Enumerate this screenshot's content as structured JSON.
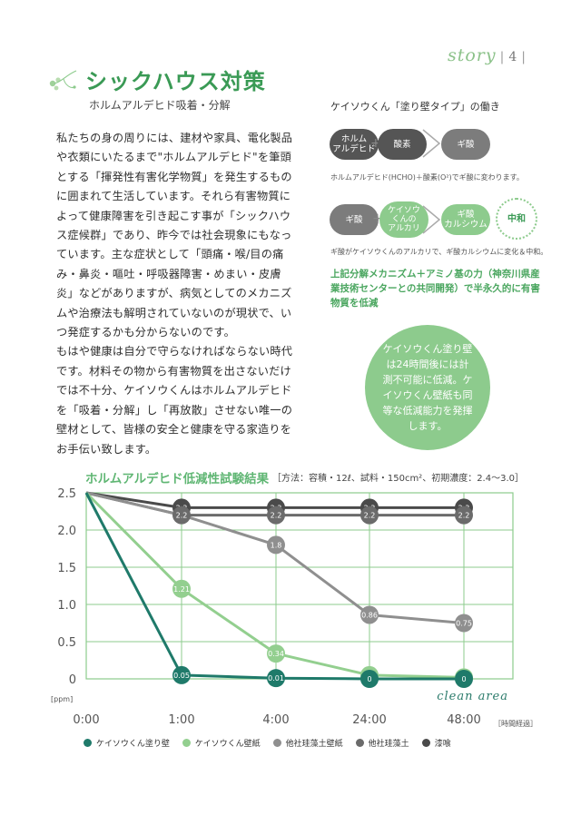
{
  "header": {
    "story_label": "story",
    "page_number": "4"
  },
  "title": "シックハウス対策",
  "subtitle": "ホルムアルデヒド吸着・分解",
  "body": {
    "paragraph1": "私たちの身の周りには、建材や家具、電化製品や衣類にいたるまで\"ホルムアルデヒド\"を筆頭とする「揮発性有害化学物質」を発生するものに囲まれて生活しています。それら有害物質によって健康障害を引き起こす事が「シックハウス症候群」であり、昨今では社会現象にもなっています。主な症状として「頭痛・喉/目の痛み・鼻炎・嘔吐・呼吸器障害・めまい・皮膚炎」などがありますが、病気としてのメカニズムや治療法も解明されていないのが現状で、いつ発症するかも分からないのです。",
    "paragraph2": "もはや健康は自分で守らなければならない時代です。材料その物から有害物質を出さないだけでは不十分、ケイソウくんはホルムアルデヒドを「吸着・分解」し「再放散」させない唯一の壁材として、皆様の安全と健康を守る家造りをお手伝い致します。"
  },
  "mechanism": {
    "title": "ケイソウくん「塗り壁タイプ」の働き",
    "row1": {
      "formaldehyde": "ホルム\nアルデヒド",
      "oxygen": "酸素",
      "formic_acid": "ギ酸"
    },
    "note1": "ホルムアルデヒド(HCHO)＋酸素(O²)でギ酸に変わります。",
    "row2": {
      "formic_acid": "ギ酸",
      "alkali": "ケイソウ\nくんの\nアルカリ",
      "calcium": "ギ酸\nカルシウム",
      "neutral": "中和"
    },
    "note2": "ギ酸がケイソウくんのアルカリで、ギ酸カルシウムに変化＆中和。",
    "green_note": "上記分解メカニズム＋アミノ基の力（神奈川県産業技術センターとの共同開発）で半永久的に有害物質を低減",
    "plus": "+"
  },
  "callout": "ケイソウくん塗り壁は24時間後には計測不可能に低減。ケイソウくん壁紙も同等な低減能力を発揮します。",
  "chart_data": {
    "type": "line",
    "title": "ホルムアルデヒド低減性試験結果",
    "conditions": "［方法：容積・12ℓ、試料・150cm²、初期濃度：2.4〜3.0］",
    "x": [
      "0:00",
      "1:00",
      "4:00",
      "24:00",
      "48:00"
    ],
    "xlabel": "［時間経過］",
    "ylabel": "[ppm]",
    "yticks": [
      "2.5",
      "2.0",
      "1.5",
      "1.0",
      "0.5",
      "0"
    ],
    "ylim": [
      0,
      2.5
    ],
    "watermark": "clean area",
    "series": [
      {
        "name": "漆喰",
        "color": "#4a4a4a",
        "values": [
          2.5,
          2.3,
          2.3,
          2.3,
          2.3
        ],
        "labels": [
          "",
          "2.3",
          "2.3",
          "2.3",
          "2.3"
        ]
      },
      {
        "name": "他社珪藻土",
        "color": "#6b6b6b",
        "values": [
          2.5,
          2.2,
          2.2,
          2.2,
          2.2
        ],
        "labels": [
          "",
          "2.2",
          "2.2",
          "2.2",
          "2.2"
        ]
      },
      {
        "name": "他社珪藻土壁紙",
        "color": "#8f8f8f",
        "values": [
          2.5,
          2.2,
          1.8,
          0.86,
          0.75
        ],
        "labels": [
          "",
          "",
          "1.8",
          "0.86",
          "0.75"
        ]
      },
      {
        "name": "ケイソウくん壁紙",
        "color": "#93cf8f",
        "values": [
          2.5,
          1.21,
          0.34,
          0.05,
          0.02
        ],
        "labels": [
          "",
          "1.21",
          "0.34",
          "0.05",
          "0.02"
        ]
      },
      {
        "name": "ケイソウくん塗り壁",
        "color": "#1f7a6a",
        "values": [
          2.5,
          0.05,
          0.01,
          0,
          0
        ],
        "labels": [
          "",
          "0.05",
          "0.01",
          "0",
          "0"
        ]
      }
    ],
    "legend": [
      {
        "name": "ケイソウくん塗り壁",
        "color": "#1f7a6a"
      },
      {
        "name": "ケイソウくん壁紙",
        "color": "#93cf8f"
      },
      {
        "name": "他社珪藻土壁紙",
        "color": "#8f8f8f"
      },
      {
        "name": "他社珪藻土",
        "color": "#6b6b6b"
      },
      {
        "name": "漆喰",
        "color": "#4a4a4a"
      }
    ],
    "colors": {
      "grid": "#8dcb8d",
      "axis_text": "#555555",
      "title": "#5fb673"
    }
  }
}
